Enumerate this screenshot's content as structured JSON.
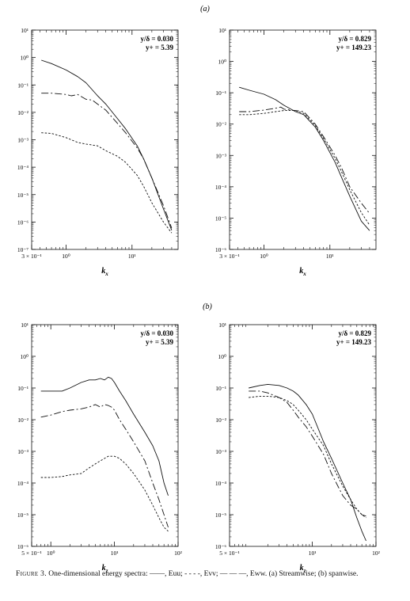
{
  "figure": {
    "part_a_label": "(a)",
    "part_b_label": "(b)",
    "caption": {
      "figure_label": "Figure 3.",
      "text": "One-dimensional energy spectra: ——, Euu; - - - -, Evv; — — —, Eww. (a) Streamwise; (b) spanwise."
    }
  },
  "chart_data": [
    {
      "type": "line",
      "panel": "a-left",
      "xlabel": "kx",
      "annotations": [
        "y/δ = 0.030",
        "y+ = 5.39"
      ],
      "x_scale": "log",
      "y_scale": "log",
      "xlim": [
        0.3,
        50
      ],
      "ylim": [
        1e-07,
        10
      ],
      "x_ticks": [
        {
          "v": 0.3,
          "l": "3 × 10⁻¹"
        },
        {
          "v": 1,
          "l": "10⁰"
        },
        {
          "v": 10,
          "l": "10¹"
        }
      ],
      "y_ticks": [
        {
          "v": 10,
          "l": "10¹"
        },
        {
          "v": 1,
          "l": "10⁰"
        },
        {
          "v": 0.1,
          "l": "10⁻¹"
        },
        {
          "v": 0.01,
          "l": "10⁻²"
        },
        {
          "v": 0.001,
          "l": "10⁻³"
        },
        {
          "v": 0.0001,
          "l": "10⁻⁴"
        },
        {
          "v": 1e-05,
          "l": "10⁻⁵"
        },
        {
          "v": 1e-06,
          "l": "10⁻⁶"
        },
        {
          "v": 1e-07,
          "l": "10⁻⁷"
        }
      ],
      "series": [
        {
          "dash": "solid",
          "x": [
            0.42,
            0.6,
            1.0,
            1.5,
            2.0,
            3.0,
            4.0,
            6.0,
            8.0,
            12,
            15,
            20,
            30,
            40
          ],
          "y": [
            0.8,
            0.6,
            0.35,
            0.2,
            0.12,
            0.04,
            0.02,
            0.006,
            0.0025,
            0.0006,
            0.0002,
            4e-05,
            3e-06,
            5e-07
          ]
        },
        {
          "dash": "dash",
          "x": [
            0.42,
            0.6,
            1.0,
            1.2,
            1.5,
            2.0,
            2.5,
            3.0,
            4.0,
            6.0,
            8.0,
            12,
            15,
            20,
            30,
            40
          ],
          "y": [
            0.05,
            0.05,
            0.045,
            0.04,
            0.045,
            0.03,
            0.028,
            0.02,
            0.012,
            0.004,
            0.0018,
            0.0005,
            0.0002,
            4e-05,
            4e-06,
            6e-07
          ]
        },
        {
          "dash": "dot",
          "x": [
            0.42,
            0.6,
            1.0,
            1.5,
            2.0,
            3.0,
            4.0,
            6.0,
            8.0,
            12,
            15,
            20,
            30,
            40
          ],
          "y": [
            0.0018,
            0.0017,
            0.0012,
            0.0008,
            0.0007,
            0.0006,
            0.0004,
            0.00025,
            0.00015,
            5e-05,
            2e-05,
            5e-06,
            1e-06,
            4e-07
          ]
        }
      ]
    },
    {
      "type": "line",
      "panel": "a-right",
      "xlabel": "kx",
      "annotations": [
        "y/δ = 0.829",
        "y+ = 149.23"
      ],
      "x_scale": "log",
      "y_scale": "log",
      "xlim": [
        0.3,
        50
      ],
      "ylim": [
        1e-06,
        10
      ],
      "x_ticks": [
        {
          "v": 0.3,
          "l": "3 × 10⁻¹"
        },
        {
          "v": 1,
          "l": "10⁰"
        },
        {
          "v": 10,
          "l": "10¹"
        }
      ],
      "y_ticks": [
        {
          "v": 10,
          "l": "10¹"
        },
        {
          "v": 1,
          "l": "10⁰"
        },
        {
          "v": 0.1,
          "l": "10⁻¹"
        },
        {
          "v": 0.01,
          "l": "10⁻²"
        },
        {
          "v": 0.001,
          "l": "10⁻³"
        },
        {
          "v": 0.0001,
          "l": "10⁻⁴"
        },
        {
          "v": 1e-05,
          "l": "10⁻⁵"
        },
        {
          "v": 1e-06,
          "l": "10⁻⁶"
        }
      ],
      "series": [
        {
          "dash": "solid",
          "x": [
            0.42,
            0.6,
            1.0,
            1.5,
            2.0,
            3.0,
            4.0,
            6.0,
            8.0,
            12,
            15,
            20,
            30,
            40
          ],
          "y": [
            0.15,
            0.12,
            0.09,
            0.06,
            0.04,
            0.025,
            0.02,
            0.008,
            0.003,
            0.0006,
            0.0002,
            5e-05,
            8e-06,
            4e-06
          ]
        },
        {
          "dash": "dash",
          "x": [
            0.42,
            0.6,
            1.0,
            1.5,
            1.8,
            2.0,
            2.5,
            3.0,
            4.0,
            6.0,
            8.0,
            12,
            15,
            20,
            30,
            40
          ],
          "y": [
            0.025,
            0.025,
            0.028,
            0.032,
            0.035,
            0.03,
            0.028,
            0.027,
            0.025,
            0.01,
            0.004,
            0.001,
            0.0004,
            0.0001,
            3e-05,
            1.4e-05
          ]
        },
        {
          "dash": "dot",
          "x": [
            0.42,
            0.6,
            1.0,
            1.5,
            2.0,
            3.0,
            4.0,
            6.0,
            8.0,
            12,
            15,
            20,
            30,
            40
          ],
          "y": [
            0.02,
            0.02,
            0.022,
            0.025,
            0.027,
            0.027,
            0.022,
            0.009,
            0.0035,
            0.0008,
            0.0003,
            8e-05,
            1.5e-05,
            6e-06
          ]
        }
      ]
    },
    {
      "type": "line",
      "panel": "b-left",
      "xlabel": "kz",
      "annotations": [
        "y/δ = 0.030",
        "y+ = 5.39"
      ],
      "x_scale": "log",
      "y_scale": "log",
      "xlim": [
        0.5,
        100
      ],
      "ylim": [
        1e-06,
        10
      ],
      "x_ticks": [
        {
          "v": 0.5,
          "l": "5 × 10⁻¹"
        },
        {
          "v": 1,
          "l": "10⁰"
        },
        {
          "v": 10,
          "l": "10¹"
        },
        {
          "v": 100,
          "l": "10²"
        }
      ],
      "y_ticks": [
        {
          "v": 10,
          "l": "10¹"
        },
        {
          "v": 1,
          "l": "10⁰"
        },
        {
          "v": 0.1,
          "l": "10⁻¹"
        },
        {
          "v": 0.01,
          "l": "10⁻²"
        },
        {
          "v": 0.001,
          "l": "10⁻³"
        },
        {
          "v": 0.0001,
          "l": "10⁻⁴"
        },
        {
          "v": 1e-05,
          "l": "10⁻⁵"
        },
        {
          "v": 1e-06,
          "l": "10⁻⁶"
        }
      ],
      "series": [
        {
          "dash": "solid",
          "x": [
            0.7,
            1.0,
            1.5,
            2.0,
            3.0,
            4.0,
            5.0,
            6.0,
            7.0,
            8.0,
            9.0,
            10,
            12,
            15,
            20,
            30,
            40,
            50,
            60,
            70
          ],
          "y": [
            0.08,
            0.08,
            0.08,
            0.1,
            0.15,
            0.18,
            0.18,
            0.2,
            0.18,
            0.22,
            0.2,
            0.15,
            0.08,
            0.04,
            0.015,
            0.004,
            0.0015,
            0.0005,
            0.0001,
            4e-05
          ]
        },
        {
          "dash": "dash",
          "x": [
            0.7,
            1.0,
            1.5,
            2.0,
            3.0,
            4.0,
            5.0,
            6.0,
            7.0,
            8.0,
            9.0,
            10,
            12,
            15,
            20,
            30,
            40,
            50,
            60,
            70
          ],
          "y": [
            0.012,
            0.014,
            0.018,
            0.02,
            0.022,
            0.025,
            0.03,
            0.025,
            0.03,
            0.028,
            0.025,
            0.02,
            0.01,
            0.005,
            0.002,
            0.0005,
            0.0001,
            3e-05,
            1e-05,
            4e-06
          ]
        },
        {
          "dash": "dot",
          "x": [
            0.7,
            1.0,
            1.5,
            2.0,
            3.0,
            4.0,
            5.0,
            6.0,
            7.0,
            8.0,
            10,
            12,
            15,
            20,
            30,
            40,
            50,
            60,
            70
          ],
          "y": [
            0.00015,
            0.00015,
            0.00016,
            0.00018,
            0.0002,
            0.0003,
            0.0004,
            0.0005,
            0.0006,
            0.0007,
            0.0007,
            0.0006,
            0.0004,
            0.0002,
            6e-05,
            2e-05,
            8e-06,
            4e-06,
            3e-06
          ]
        }
      ]
    },
    {
      "type": "line",
      "panel": "b-right",
      "xlabel": "kz",
      "annotations": [
        "y/δ = 0.829",
        "y+ = 149.23"
      ],
      "x_scale": "log",
      "y_scale": "log",
      "xlim": [
        0.5,
        100
      ],
      "ylim": [
        1e-06,
        10
      ],
      "x_ticks": [
        {
          "v": 0.5,
          "l": "5 × 10⁻¹"
        },
        {
          "v": 10,
          "l": "10¹"
        },
        {
          "v": 100,
          "l": "10²"
        }
      ],
      "y_ticks": [
        {
          "v": 10,
          "l": "10¹"
        },
        {
          "v": 1,
          "l": "10⁰"
        },
        {
          "v": 0.1,
          "l": "10⁻¹"
        },
        {
          "v": 0.01,
          "l": "10⁻²"
        },
        {
          "v": 0.001,
          "l": "10⁻³"
        },
        {
          "v": 0.0001,
          "l": "10⁻⁴"
        },
        {
          "v": 1e-05,
          "l": "10⁻⁵"
        },
        {
          "v": 1e-06,
          "l": "10⁻⁶"
        }
      ],
      "series": [
        {
          "dash": "solid",
          "x": [
            1.0,
            1.5,
            2.0,
            3.0,
            4.0,
            5.0,
            6.0,
            8.0,
            10,
            15,
            20,
            30,
            40,
            50,
            60,
            70
          ],
          "y": [
            0.1,
            0.12,
            0.13,
            0.12,
            0.1,
            0.08,
            0.06,
            0.03,
            0.015,
            0.002,
            0.0006,
            0.0001,
            3e-05,
            8e-06,
            3e-06,
            1.5e-06
          ]
        },
        {
          "dash": "dash",
          "x": [
            1.0,
            1.5,
            2.0,
            3.0,
            4.0,
            5.0,
            6.0,
            8.0,
            10,
            15,
            20,
            30,
            40,
            50,
            60,
            70
          ],
          "y": [
            0.08,
            0.08,
            0.07,
            0.05,
            0.035,
            0.02,
            0.012,
            0.006,
            0.003,
            0.0008,
            0.0002,
            4e-05,
            2e-05,
            1.5e-05,
            1e-05,
            9e-06
          ]
        },
        {
          "dash": "dot",
          "x": [
            1.0,
            1.5,
            2.0,
            3.0,
            4.0,
            5.0,
            6.0,
            8.0,
            10,
            15,
            20,
            30,
            40,
            50,
            60,
            70
          ],
          "y": [
            0.05,
            0.055,
            0.055,
            0.05,
            0.04,
            0.03,
            0.02,
            0.01,
            0.005,
            0.0015,
            0.0004,
            8e-05,
            3e-05,
            1.5e-05,
            1e-05,
            8e-06
          ]
        }
      ]
    }
  ]
}
